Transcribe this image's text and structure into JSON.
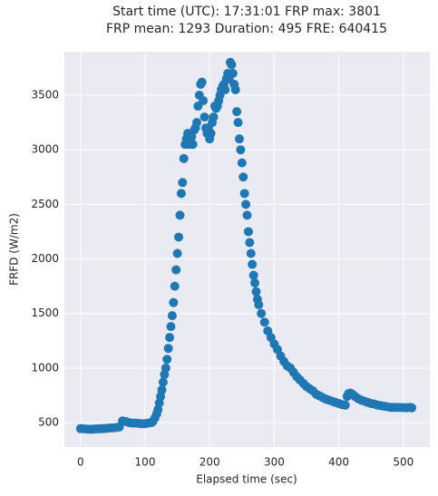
{
  "chart_data": {
    "type": "scatter",
    "title": [
      "Start time (UTC): 17:31:01 FRP max: 3801",
      "FRP mean: 1293 Duration: 495 FRE: 640415"
    ],
    "x_label": "Elapsed time (sec)",
    "y_label": "FRFD (W/m2)",
    "x": [
      0,
      5,
      10,
      15,
      20,
      25,
      30,
      35,
      40,
      45,
      50,
      55,
      60,
      65,
      70,
      75,
      80,
      85,
      90,
      95,
      100,
      105,
      110,
      112,
      115,
      118,
      120,
      122,
      124,
      126,
      128,
      130,
      132,
      134,
      136,
      138,
      140,
      142,
      144,
      146,
      148,
      150,
      152,
      154,
      156,
      158,
      160,
      162,
      164,
      166,
      168,
      170,
      172,
      174,
      176,
      178,
      180,
      182,
      184,
      186,
      188,
      190,
      192,
      194,
      196,
      198,
      200,
      202,
      204,
      206,
      208,
      210,
      212,
      214,
      216,
      218,
      220,
      222,
      224,
      226,
      228,
      230,
      232,
      234,
      236,
      238,
      240,
      242,
      244,
      246,
      248,
      250,
      252,
      254,
      256,
      258,
      260,
      262,
      264,
      266,
      268,
      270,
      272,
      274,
      276,
      280,
      285,
      290,
      295,
      300,
      305,
      310,
      315,
      320,
      325,
      330,
      335,
      340,
      345,
      350,
      355,
      360,
      365,
      370,
      375,
      380,
      385,
      390,
      395,
      400,
      405,
      410,
      413,
      415,
      418,
      421,
      425,
      430,
      435,
      440,
      445,
      450,
      455,
      460,
      465,
      470,
      475,
      480,
      485,
      490,
      495,
      500,
      505,
      510,
      513
    ],
    "values": [
      445,
      443,
      440,
      438,
      440,
      442,
      443,
      445,
      447,
      450,
      452,
      455,
      460,
      515,
      510,
      500,
      495,
      495,
      492,
      490,
      490,
      495,
      500,
      510,
      540,
      580,
      620,
      680,
      740,
      800,
      870,
      940,
      1000,
      1080,
      1180,
      1280,
      1380,
      1480,
      1600,
      1750,
      1900,
      2050,
      2200,
      2400,
      2600,
      2700,
      2920,
      3050,
      3100,
      3150,
      3050,
      3100,
      3120,
      3050,
      3180,
      3200,
      3250,
      3400,
      3500,
      3600,
      3620,
      3450,
      3300,
      3200,
      3150,
      3200,
      3100,
      3150,
      3250,
      3300,
      3400,
      3380,
      3400,
      3450,
      3500,
      3550,
      3580,
      3600,
      3550,
      3650,
      3700,
      3650,
      3801,
      3780,
      3700,
      3600,
      3550,
      3350,
      3250,
      3100,
      3000,
      2880,
      2750,
      2600,
      2500,
      2400,
      2250,
      2150,
      2050,
      1950,
      1850,
      1780,
      1700,
      1630,
      1580,
      1500,
      1420,
      1340,
      1280,
      1220,
      1170,
      1110,
      1060,
      1020,
      1000,
      960,
      920,
      890,
      860,
      830,
      810,
      790,
      760,
      745,
      730,
      715,
      705,
      695,
      685,
      675,
      665,
      660,
      740,
      765,
      770,
      760,
      740,
      720,
      705,
      695,
      685,
      675,
      670,
      660,
      655,
      650,
      645,
      640,
      640,
      638,
      638,
      637,
      636,
      640,
      635
    ],
    "color": "#1f77b4",
    "xlim": [
      -25,
      541
    ],
    "ylim": [
      276,
      3899
    ],
    "xticks": [
      0,
      100,
      200,
      300,
      400,
      500
    ],
    "yticks": [
      500,
      1000,
      1500,
      2000,
      2500,
      3000,
      3500
    ],
    "grid": true
  }
}
